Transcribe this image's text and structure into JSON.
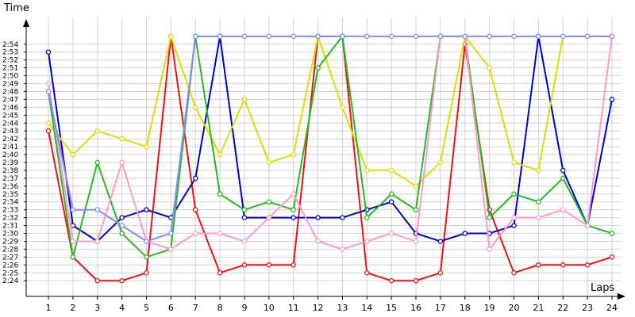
{
  "chart_data": {
    "type": "line",
    "title": "",
    "xlabel": "Laps",
    "ylabel": "Time",
    "xlim": [
      1,
      24
    ],
    "ylim": [
      "2:23",
      "2:55"
    ],
    "grid": true,
    "x": [
      1,
      2,
      3,
      4,
      5,
      6,
      7,
      8,
      9,
      10,
      11,
      12,
      13,
      14,
      15,
      16,
      17,
      18,
      19,
      20,
      21,
      22,
      23,
      24
    ],
    "yticks": [
      "2:24",
      "2:25",
      "2:26",
      "2:27",
      "2:28",
      "2:29",
      "2:30",
      "2:31",
      "2:32",
      "2:33",
      "2:34",
      "2:35",
      "2:36",
      "2:37",
      "2:38",
      "2:39",
      "2:40",
      "2:41",
      "2:42",
      "2:43",
      "2:44",
      "2:45",
      "2:46",
      "2:47",
      "2:48",
      "2:49",
      "2:50",
      "2:51",
      "2:52",
      "2:53",
      "2:54"
    ],
    "series": [
      {
        "color": "#ee1111",
        "values": [
          "2:43",
          "2:27",
          "2:24",
          "2:24",
          "2:25",
          "2:55",
          "2:33",
          "2:25",
          "2:26",
          "2:26",
          "2:26",
          "2:55",
          "2:55",
          "2:25",
          "2:24",
          "2:24",
          "2:25",
          "2:54",
          "2:33",
          "2:25",
          "2:26",
          "2:26",
          "2:26",
          "2:27"
        ]
      },
      {
        "color": "#0000cc",
        "values": [
          "2:53",
          "2:31",
          "2:29",
          "2:32",
          "2:33",
          "2:32",
          "2:37",
          "2:55",
          "2:32",
          "2:32",
          "2:32",
          "2:32",
          "2:32",
          "2:33",
          "2:34",
          "2:30",
          "2:29",
          "2:30",
          "2:30",
          "2:31",
          "2:55",
          "2:38",
          "2:31",
          "2:47"
        ]
      },
      {
        "color": "#dddd00",
        "values": [
          "2:44",
          "2:40",
          "2:43",
          "2:42",
          "2:41",
          "2:55",
          "2:46",
          "2:40",
          "2:47",
          "2:39",
          "2:40",
          "2:55",
          "2:46",
          "2:38",
          "2:38",
          "2:36",
          "2:39",
          "2:55",
          "2:51",
          "2:39",
          "2:38",
          "2:55",
          "2:55",
          "2:55"
        ]
      },
      {
        "color": "#22bb22",
        "values": [
          "2:48",
          "2:27",
          "2:39",
          "2:30",
          "2:27",
          "2:28",
          "2:55",
          "2:35",
          "2:33",
          "2:34",
          "2:33",
          "2:51",
          "2:55",
          "2:32",
          "2:35",
          "2:33",
          "2:55",
          "2:55",
          "2:32",
          "2:35",
          "2:34",
          "2:37",
          "2:31",
          "2:30"
        ]
      },
      {
        "color": "#ff99cc",
        "values": [
          "2:49",
          "2:29",
          "2:29",
          "2:39",
          "2:29",
          "2:28",
          "2:30",
          "2:30",
          "2:29",
          "2:32",
          "2:35",
          "2:29",
          "2:28",
          "2:29",
          "2:30",
          "2:29",
          "2:55",
          "2:55",
          "2:28",
          "2:32",
          "2:32",
          "2:33",
          "2:31",
          "2:55"
        ]
      },
      {
        "color": "#8888ff",
        "values": [
          "2:48",
          "2:33",
          "2:33",
          "2:31",
          "2:29",
          "2:30",
          "2:55",
          "2:55",
          "2:55",
          "2:55",
          "2:55",
          "2:55",
          "2:55",
          "2:55",
          "2:55",
          "2:55",
          "2:55",
          "2:55",
          "2:55",
          "2:55",
          "2:55",
          "2:55",
          "2:55",
          "2:55"
        ]
      }
    ]
  }
}
